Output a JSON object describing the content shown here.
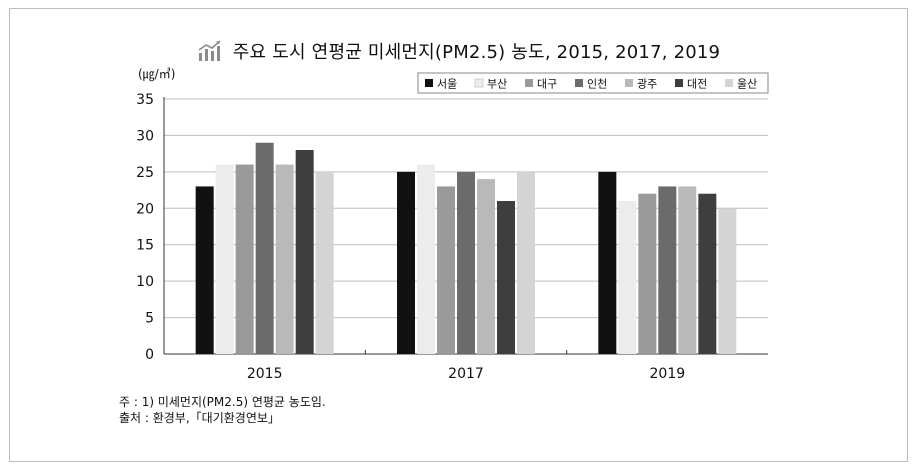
{
  "title": "주요 도시 연평균 미세먼지(PM2.5) 농도, 2015, 2017, 2019",
  "notes": {
    "note1": "주   : 1) 미세먼지(PM2.5) 연평균 농도임.",
    "source": "출처 : 환경부,「대기환경연보」"
  },
  "colors": {
    "서울": "#111111",
    "부산": "#ececec",
    "대구": "#9a9a9a",
    "인천": "#6b6b6b",
    "광주": "#b9b9b9",
    "대전": "#3e3e3e",
    "울산": "#d4d4d4"
  },
  "chart_data": {
    "type": "bar",
    "title": "주요 도시 연평균 미세먼지(PM2.5) 농도, 2015, 2017, 2019",
    "xlabel": "",
    "ylabel": "(㎍/㎥)",
    "ylim": [
      0,
      35
    ],
    "yticks": [
      0,
      5,
      10,
      15,
      20,
      25,
      30,
      35
    ],
    "grid": true,
    "legend_position": "top-right",
    "categories": [
      "2015",
      "2017",
      "2019"
    ],
    "series": [
      {
        "name": "서울",
        "values": [
          23,
          25,
          25
        ]
      },
      {
        "name": "부산",
        "values": [
          26,
          26,
          21
        ]
      },
      {
        "name": "대구",
        "values": [
          26,
          23,
          22
        ]
      },
      {
        "name": "인천",
        "values": [
          29,
          25,
          23
        ]
      },
      {
        "name": "광주",
        "values": [
          26,
          24,
          23
        ]
      },
      {
        "name": "대전",
        "values": [
          28,
          21,
          22
        ]
      },
      {
        "name": "울산",
        "values": [
          25,
          25,
          20
        ]
      }
    ]
  }
}
